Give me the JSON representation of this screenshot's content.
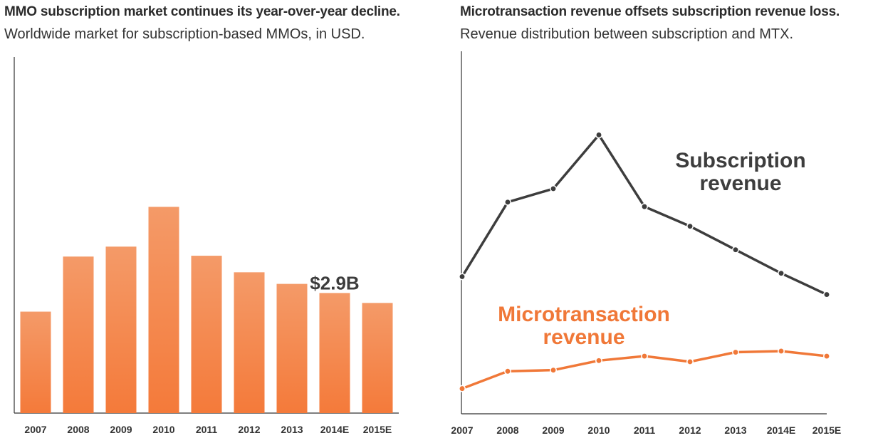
{
  "chart_data": [
    {
      "type": "bar",
      "title": "MMO subscription market continues its year-over-year decline.",
      "subtitle": "Worldwide market for subscription-based MMOs, in USD.",
      "categories": [
        "2007",
        "2008",
        "2009",
        "2010",
        "2011",
        "2012",
        "2013",
        "2014E",
        "2015E"
      ],
      "values": [
        2.45,
        3.78,
        4.02,
        4.98,
        3.8,
        3.4,
        3.12,
        2.9,
        2.66
      ],
      "annotation": {
        "category": "2014E",
        "text": "$2.9B"
      },
      "ylim": [
        0,
        8.6
      ],
      "grid": false,
      "bar_color_top": "#f49a68",
      "bar_color_bottom": "#f47a3a"
    },
    {
      "type": "line",
      "title": "Microtransaction revenue offsets subscription revenue loss.",
      "subtitle": "Revenue distribution between subscription and MTX.",
      "x": [
        "2007",
        "2008",
        "2009",
        "2010",
        "2011",
        "2012",
        "2013",
        "2014E",
        "2015E"
      ],
      "series": [
        {
          "name": "Subscription revenue",
          "name_lines": [
            "Subscription",
            "revenue"
          ],
          "values": [
            2.45,
            3.78,
            4.02,
            4.98,
            3.7,
            3.35,
            2.93,
            2.51,
            2.13
          ],
          "color": "#3d3d3d"
        },
        {
          "name": "Microtransaction revenue",
          "name_lines": [
            "Microtransaction",
            "revenue"
          ],
          "values": [
            0.45,
            0.76,
            0.78,
            0.95,
            1.03,
            0.93,
            1.1,
            1.12,
            1.03
          ],
          "color": "#f07838"
        }
      ],
      "ylim": [
        0,
        6.5
      ],
      "grid": false
    }
  ]
}
